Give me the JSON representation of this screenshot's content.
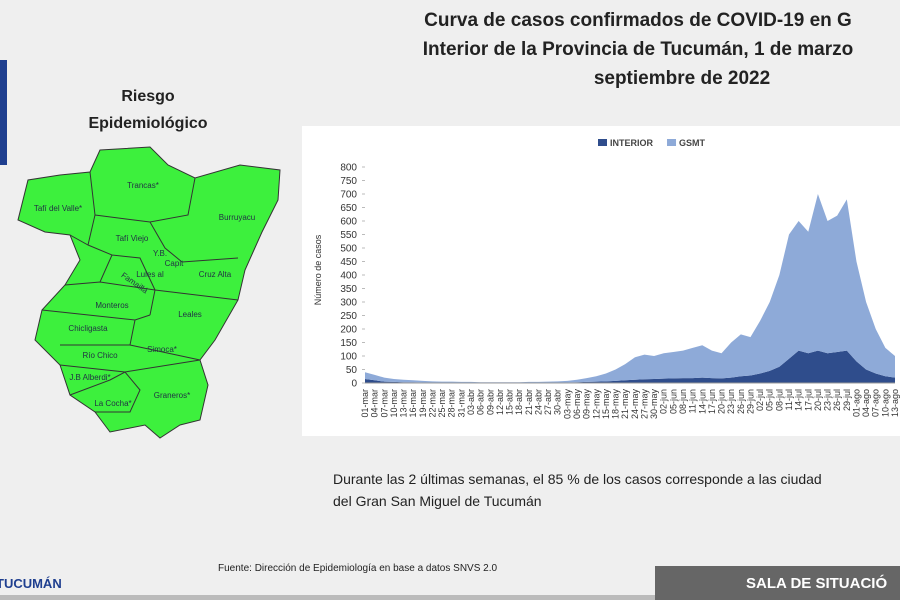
{
  "slide": {
    "title_lines": [
      "Curva de casos confirmados de COVID-19 en G",
      "Interior de la Provincia de Tucumán, 1 de marzo",
      "septiembre de 2022"
    ],
    "map_heading": [
      "Riesgo",
      "Epidemiológico"
    ],
    "map_labels": [
      "Tafí del Valle*",
      "Trancas*",
      "Burruyacu",
      "Tafí Viejo",
      "Y.B.",
      "Capit",
      "Lules al",
      "Cruz Alta",
      "Famaillá",
      "Monteros",
      "Leales",
      "Chicligasta",
      "Simoca*",
      "Río Chico",
      "J.B Alberdi*",
      "Graneros*",
      "La Cocha*"
    ],
    "note_lines": [
      "Durante las 2 últimas semanas, el 85 % de los casos corresponde a las ciudad",
      "del Gran San Miguel de Tucumán"
    ],
    "source": "Fuente: Dirección de Epidemiología en base a datos SNVS 2.0",
    "footer_left": "TUCUMÁN",
    "footer_right": "SALA DE SITUACIÓ"
  },
  "chart_data": {
    "type": "stacked-area",
    "y_label": "Número de casos",
    "categories": [
      "01-mar",
      "04-mar",
      "07-mar",
      "10-mar",
      "13-mar",
      "16-mar",
      "19-mar",
      "22-mar",
      "25-mar",
      "28-mar",
      "31-mar",
      "03-abr",
      "06-abr",
      "09-abr",
      "12-abr",
      "15-abr",
      "18-abr",
      "21-abr",
      "24-abr",
      "27-abr",
      "30-abr",
      "03-may",
      "06-may",
      "09-may",
      "12-may",
      "15-may",
      "18-may",
      "21-may",
      "24-may",
      "27-may",
      "30-may",
      "02-jun",
      "05-jun",
      "08-jun",
      "11-jun",
      "14-jun",
      "17-jun",
      "20-jun",
      "23-jun",
      "26-jun",
      "29-jun",
      "02-jul",
      "05-jul",
      "08-jul",
      "11-jul",
      "14-jul",
      "17-jul",
      "20-jul",
      "23-jul",
      "26-jul",
      "29-jul",
      "01-ago",
      "04-ago",
      "07-ago",
      "10-ago",
      "13-ago"
    ],
    "series": [
      {
        "name": "INTERIOR",
        "color": "#2f4d8c",
        "values": [
          15,
          10,
          5,
          4,
          3,
          3,
          2,
          2,
          1,
          1,
          1,
          1,
          1,
          1,
          1,
          1,
          1,
          1,
          1,
          1,
          1,
          2,
          3,
          4,
          5,
          6,
          8,
          10,
          12,
          14,
          15,
          16,
          17,
          18,
          18,
          20,
          18,
          17,
          20,
          25,
          28,
          35,
          45,
          60,
          90,
          120,
          110,
          120,
          110,
          115,
          120,
          80,
          50,
          35,
          25,
          20
        ]
      },
      {
        "name": "GSMT",
        "color": "#8eaad8",
        "values": [
          25,
          20,
          15,
          11,
          9,
          7,
          6,
          4,
          4,
          4,
          3,
          3,
          2,
          2,
          2,
          2,
          2,
          3,
          3,
          4,
          5,
          6,
          9,
          14,
          20,
          29,
          42,
          60,
          83,
          91,
          85,
          94,
          98,
          102,
          112,
          120,
          102,
          93,
          130,
          155,
          142,
          195,
          255,
          340,
          460,
          480,
          450,
          580,
          490,
          505,
          560,
          370,
          250,
          165,
          105,
          80
        ]
      }
    ],
    "ylim": [
      0,
      800
    ],
    "yticks": [
      0,
      50,
      100,
      150,
      200,
      250,
      300,
      350,
      400,
      450,
      500,
      550,
      600,
      650,
      700,
      750,
      800
    ],
    "legend": "top"
  }
}
